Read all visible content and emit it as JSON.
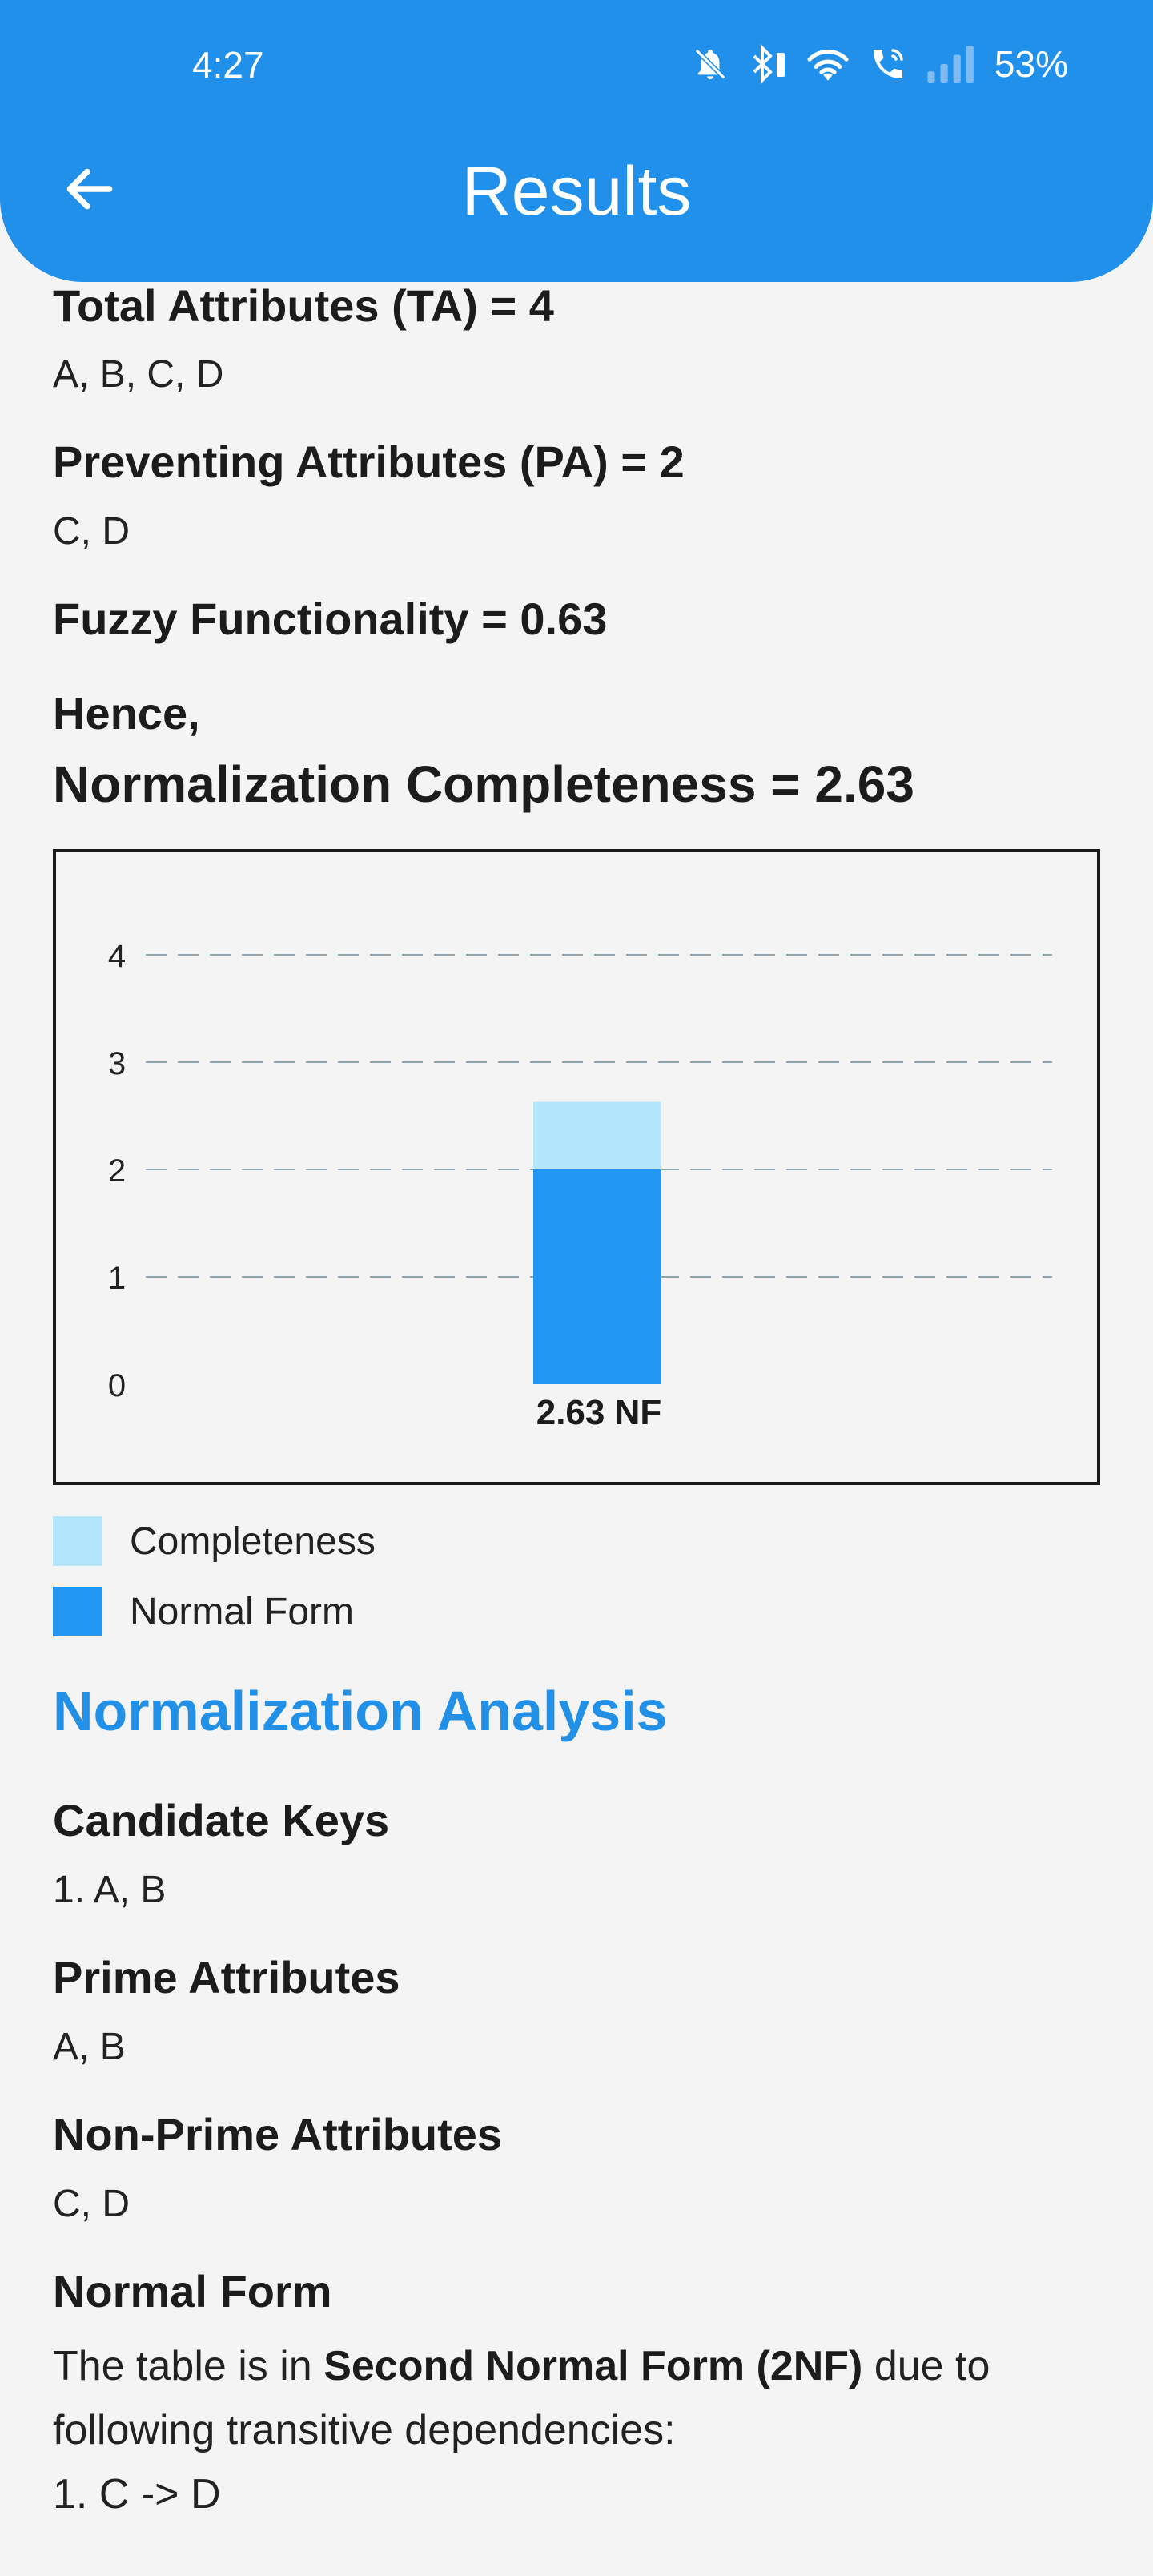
{
  "status_bar": {
    "time": "4:27",
    "battery": "53%",
    "icons": [
      "bell-muted-icon",
      "bluetooth-icon",
      "wifi-icon",
      "wifi-calling-icon",
      "signal-icon"
    ]
  },
  "app_bar": {
    "back_icon": "arrow-left-icon",
    "title": "Results",
    "color": "#2090ea"
  },
  "metrics": {
    "total_attributes": {
      "heading": "Total Attributes (TA) = 4",
      "value": "A, B, C, D"
    },
    "preventing_attributes": {
      "heading": "Preventing Attributes (PA) = 2",
      "value": "C, D"
    },
    "fuzzy_functionality": {
      "heading": "Fuzzy Functionality = 0.63"
    },
    "hence_label": "Hence,",
    "normalization_completeness": "Normalization Completeness = 2.63"
  },
  "chart_data": {
    "type": "bar",
    "stacked": true,
    "categories": [
      "2.63 NF"
    ],
    "series": [
      {
        "name": "Normal Form",
        "values": [
          2
        ],
        "color": "#2196f3"
      },
      {
        "name": "Completeness",
        "values": [
          0.63
        ],
        "color": "#b3e5fc"
      }
    ],
    "ylim": [
      0,
      4
    ],
    "y_ticks": [
      "0",
      "1",
      "2",
      "3",
      "4"
    ],
    "grid": "dashed-horizontal",
    "legend_placement": "bottom-left"
  },
  "legend": {
    "items": [
      {
        "label": "Completeness",
        "color": "#b3e5fc"
      },
      {
        "label": "Normal Form",
        "color": "#2196f3"
      }
    ]
  },
  "analysis": {
    "title": "Normalization Analysis",
    "candidate_keys": {
      "heading": "Candidate Keys",
      "value": "1. A, B"
    },
    "prime_attributes": {
      "heading": "Prime Attributes",
      "value": "A, B"
    },
    "non_prime_attributes": {
      "heading": "Non-Prime Attributes",
      "value": "C, D"
    },
    "normal_form": {
      "heading": "Normal Form",
      "text_before": "The table is in ",
      "text_bold": "Second Normal Form (2NF)",
      "text_after": " due to following transitive dependencies:",
      "dependency": "1. C -> D"
    }
  }
}
